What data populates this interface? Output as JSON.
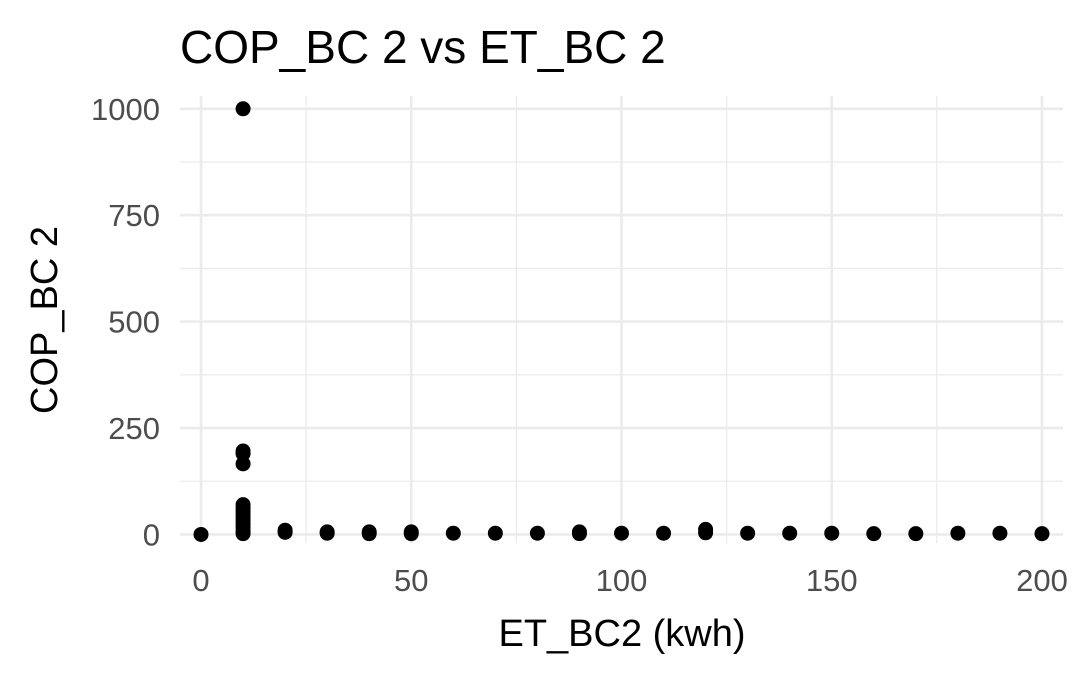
{
  "chart_data": {
    "type": "scatter",
    "title": "COP_BC 2  vs ET_BC 2",
    "xlabel": "ET_BC2 (kwh)",
    "ylabel": "COP_BC 2",
    "xlim": [
      -5,
      205
    ],
    "ylim": [
      -20,
      1030
    ],
    "x_ticks": [
      0,
      50,
      100,
      150,
      200
    ],
    "x_tick_labels": [
      "0",
      "50",
      "100",
      "150",
      "200"
    ],
    "y_ticks": [
      0,
      250,
      500,
      750,
      1000
    ],
    "y_tick_labels": [
      "0",
      "250",
      "500",
      "750",
      "1000"
    ],
    "grid": true,
    "legend": "none",
    "point_color": "#000000",
    "points": [
      {
        "x": 0,
        "y": 0
      },
      {
        "x": 10,
        "y": 1000
      },
      {
        "x": 10,
        "y": 196
      },
      {
        "x": 10,
        "y": 190
      },
      {
        "x": 10,
        "y": 166
      },
      {
        "x": 10,
        "y": 70
      },
      {
        "x": 10,
        "y": 62
      },
      {
        "x": 10,
        "y": 55
      },
      {
        "x": 10,
        "y": 48
      },
      {
        "x": 10,
        "y": 40
      },
      {
        "x": 10,
        "y": 32
      },
      {
        "x": 10,
        "y": 24
      },
      {
        "x": 10,
        "y": 16
      },
      {
        "x": 10,
        "y": 8
      },
      {
        "x": 10,
        "y": 2
      },
      {
        "x": 20,
        "y": 10
      },
      {
        "x": 20,
        "y": 5
      },
      {
        "x": 30,
        "y": 6
      },
      {
        "x": 30,
        "y": 3
      },
      {
        "x": 40,
        "y": 6
      },
      {
        "x": 40,
        "y": 2
      },
      {
        "x": 50,
        "y": 6
      },
      {
        "x": 50,
        "y": 2
      },
      {
        "x": 60,
        "y": 3
      },
      {
        "x": 70,
        "y": 3
      },
      {
        "x": 80,
        "y": 3
      },
      {
        "x": 90,
        "y": 6
      },
      {
        "x": 90,
        "y": 2
      },
      {
        "x": 100,
        "y": 3
      },
      {
        "x": 110,
        "y": 3
      },
      {
        "x": 120,
        "y": 12
      },
      {
        "x": 120,
        "y": 4
      },
      {
        "x": 130,
        "y": 3
      },
      {
        "x": 140,
        "y": 3
      },
      {
        "x": 150,
        "y": 3
      },
      {
        "x": 160,
        "y": 2
      },
      {
        "x": 170,
        "y": 2
      },
      {
        "x": 180,
        "y": 3
      },
      {
        "x": 190,
        "y": 3
      },
      {
        "x": 200,
        "y": 2
      }
    ]
  }
}
